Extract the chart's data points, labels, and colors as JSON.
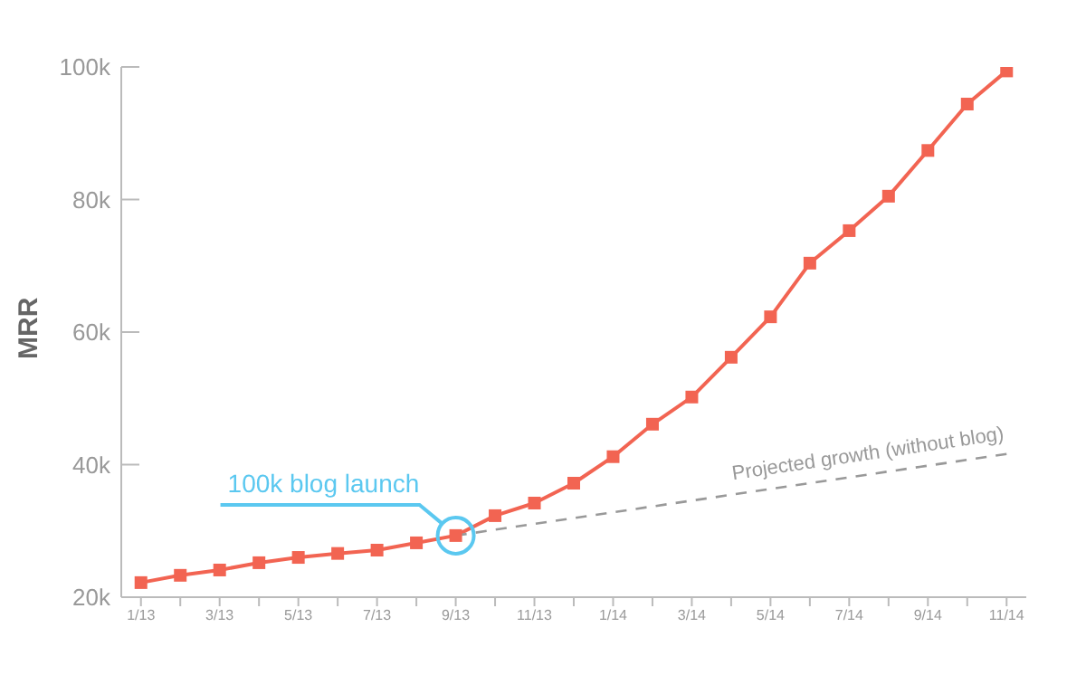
{
  "chart_data": {
    "type": "line",
    "ylabel": "MRR",
    "categories": [
      "1/13",
      null,
      "3/13",
      null,
      "5/13",
      null,
      "7/13",
      null,
      "9/13",
      null,
      "11/13",
      null,
      "1/14",
      null,
      "3/14",
      null,
      "5/14",
      null,
      "7/14",
      null,
      "9/14",
      null,
      "11/14"
    ],
    "series": [
      {
        "color": "#f26452",
        "marker": "square",
        "line_style": "solid",
        "values": [
          22200,
          23300,
          24100,
          25200,
          26000,
          26600,
          27100,
          28200,
          29300,
          32300,
          34200,
          37200,
          41200,
          46100,
          50200,
          56200,
          62300,
          70400,
          75300,
          80500,
          87400,
          94400,
          99400
        ]
      },
      {
        "name": "Projected growth (without blog)",
        "color": "#999999",
        "line_style": "dashed",
        "values": [
          null,
          null,
          null,
          null,
          null,
          null,
          null,
          null,
          29300,
          null,
          null,
          null,
          null,
          null,
          null,
          null,
          null,
          null,
          null,
          null,
          null,
          null,
          41600
        ]
      }
    ],
    "ylim": [
      20000,
      100000
    ],
    "yticks": [
      {
        "value": 20000,
        "label": "20k"
      },
      {
        "value": 40000,
        "label": "40k"
      },
      {
        "value": 60000,
        "label": "60k"
      },
      {
        "value": 80000,
        "label": "80k"
      },
      {
        "value": 100000,
        "label": "100k"
      }
    ],
    "annotations": [
      {
        "text": "100k blog launch",
        "x": "9/13",
        "y": 29300
      }
    ],
    "grid": false,
    "legend": false
  }
}
